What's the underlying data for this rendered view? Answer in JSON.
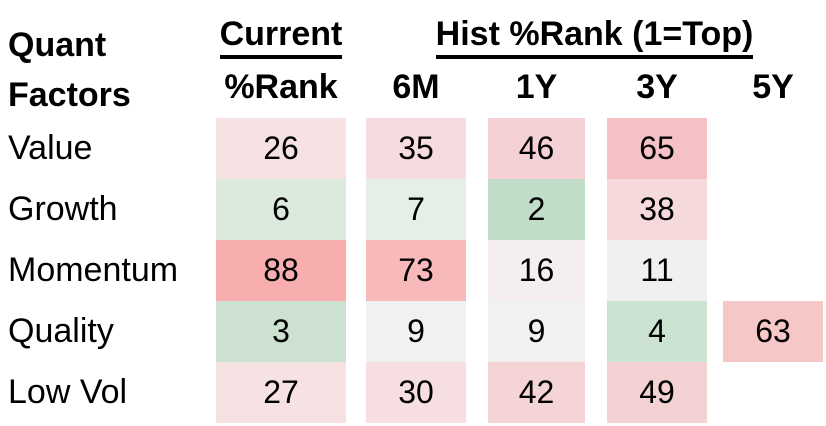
{
  "title": {
    "line1": "Quant",
    "line2": "Factors"
  },
  "header": {
    "current_group": "Current",
    "current_sub": "%Rank",
    "hist_group": "Hist %Rank (1=Top)",
    "period_columns": [
      "6M",
      "1Y",
      "3Y",
      "5Y"
    ]
  },
  "colors": {
    "background": "#ffffff",
    "text": "#000000",
    "scale_low_green": "#c2ddc7",
    "scale_mid_white": "#f2f1f2",
    "scale_high_red": "#f8aeae"
  },
  "table": {
    "rows": [
      {
        "label": "Value",
        "cells": [
          {
            "value": "26",
            "bg": "#f6e2e3"
          },
          {
            "value": "35",
            "bg": "#f7dcdf"
          },
          {
            "value": "46",
            "bg": "#f5d0d4"
          },
          {
            "value": "65",
            "bg": "#f4c2c4"
          },
          null
        ]
      },
      {
        "label": "Growth",
        "cells": [
          {
            "value": "6",
            "bg": "#dceade"
          },
          {
            "value": "7",
            "bg": "#e4efe7"
          },
          {
            "value": "2",
            "bg": "#c2ddc7"
          },
          {
            "value": "38",
            "bg": "#f6dadb"
          },
          null
        ]
      },
      {
        "label": "Momentum",
        "cells": [
          {
            "value": "88",
            "bg": "#f8aeae"
          },
          {
            "value": "73",
            "bg": "#f7b9ba"
          },
          {
            "value": "16",
            "bg": "#f4eef0"
          },
          {
            "value": "11",
            "bg": "#f0f0f1"
          },
          null
        ]
      },
      {
        "label": "Quality",
        "cells": [
          {
            "value": "3",
            "bg": "#cce1cf"
          },
          {
            "value": "9",
            "bg": "#f2f1f2"
          },
          {
            "value": "9",
            "bg": "#f2f1f2"
          },
          {
            "value": "4",
            "bg": "#cde3d1"
          },
          {
            "value": "63",
            "bg": "#f7c6c7"
          }
        ]
      },
      {
        "label": "Low Vol",
        "cells": [
          {
            "value": "27",
            "bg": "#f6e1e3"
          },
          {
            "value": "30",
            "bg": "#f7dee0"
          },
          {
            "value": "42",
            "bg": "#f5d4d6"
          },
          {
            "value": "49",
            "bg": "#f4d1d3"
          },
          null
        ]
      }
    ]
  },
  "chart_data": {
    "type": "heatmap",
    "title": "Quant Factors — Current %Rank and Hist %Rank (1=Top)",
    "row_labels": [
      "Value",
      "Growth",
      "Momentum",
      "Quality",
      "Low Vol"
    ],
    "column_labels": [
      "Current %Rank",
      "6M",
      "1Y",
      "3Y",
      "5Y"
    ],
    "values": [
      [
        26,
        35,
        46,
        65,
        null
      ],
      [
        6,
        7,
        2,
        38,
        null
      ],
      [
        88,
        73,
        16,
        11,
        null
      ],
      [
        3,
        9,
        9,
        4,
        63
      ],
      [
        27,
        30,
        42,
        49,
        null
      ]
    ],
    "value_range": [
      1,
      100
    ],
    "color_scale": "green = low percentile (top rank), white = mid, red = high percentile",
    "legend_note": "1=Top"
  }
}
